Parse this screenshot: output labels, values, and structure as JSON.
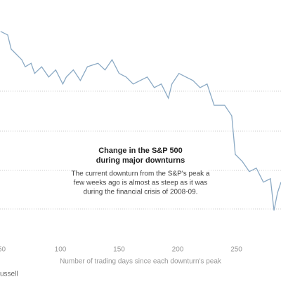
{
  "chart_data": {
    "type": "line",
    "title": [
      "Change in the S&P 500",
      "during major downturns"
    ],
    "subtitle": [
      "The current downturn from the S&P's peak a",
      "few weeks ago is almost as steep as it was",
      "during the financial crisis of 2008-09."
    ],
    "x_label": "Number of trading days since each downturn's peak",
    "source": "ussell",
    "xlim": [
      48.5,
      288
    ],
    "xticks": [
      50,
      100,
      150,
      200,
      250
    ],
    "ylim": [
      -49.3,
      13.2
    ],
    "series": [
      {
        "color": "#8aa9c4",
        "x": [
          49,
          55,
          58,
          61,
          67,
          70,
          75,
          78,
          84,
          90,
          96,
          102,
          105,
          111,
          117,
          123,
          132,
          138,
          144,
          150,
          156,
          162,
          168,
          174,
          180,
          186,
          192,
          195,
          201,
          207,
          213,
          219,
          225,
          231,
          240,
          246,
          249,
          255,
          261,
          267,
          273,
          279,
          282,
          285,
          288
        ],
        "values": [
          5.2,
          4.3,
          0.7,
          -0.2,
          -2.0,
          -3.8,
          -2.9,
          -5.5,
          -3.8,
          -6.4,
          -4.6,
          -8.2,
          -6.4,
          -4.6,
          -7.3,
          -3.8,
          -2.9,
          -4.6,
          -2.0,
          -5.5,
          -6.4,
          -8.2,
          -7.3,
          -6.4,
          -9.1,
          -8.2,
          -11.8,
          -8.2,
          -5.5,
          -6.4,
          -7.3,
          -9.1,
          -8.2,
          -13.6,
          -13.6,
          -16.3,
          -26.1,
          -27.9,
          -30.5,
          -29.6,
          -33.2,
          -32.3,
          -40.4,
          -35.9,
          -33.2
        ]
      }
    ]
  }
}
